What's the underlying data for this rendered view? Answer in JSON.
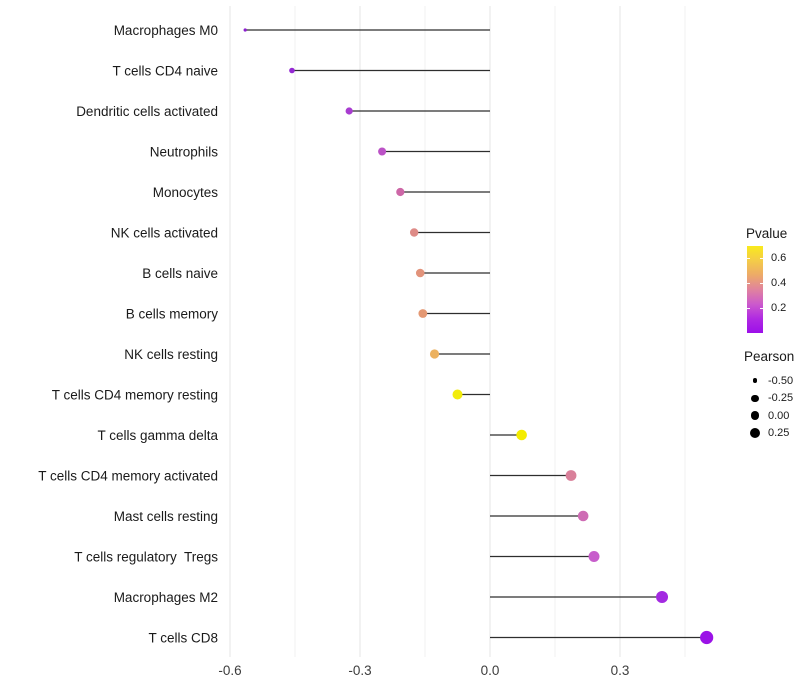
{
  "figure": {
    "background": "#ffffff"
  },
  "chart_data": {
    "type": "lollipop",
    "orientation": "horizontal",
    "title": "",
    "xlabel": "",
    "ylabel": "",
    "baseline": 0.0,
    "x_axis": {
      "ticks": [
        -0.6,
        -0.3,
        0.0,
        0.3
      ],
      "tick_labels": [
        "-0.6",
        "-0.3",
        "0.0",
        "0.3"
      ],
      "minor_ticks": [
        -0.45,
        -0.15,
        0.15,
        0.45
      ],
      "range": [
        -0.62,
        0.56
      ]
    },
    "grid": "on",
    "rows": [
      {
        "label": "Macrophages M0",
        "pearson": -0.565,
        "pvalue_approx": 0.03,
        "color": "#8d1fd0",
        "dot_radius": 1.6
      },
      {
        "label": "T cells CD4 naive",
        "pearson": -0.457,
        "pvalue_approx": 0.05,
        "color": "#9428d3",
        "dot_radius": 2.8
      },
      {
        "label": "Dendritic cells activated",
        "pearson": -0.325,
        "pvalue_approx": 0.09,
        "color": "#a83cd0",
        "dot_radius": 3.6
      },
      {
        "label": "Neutrophils",
        "pearson": -0.249,
        "pvalue_approx": 0.14,
        "color": "#bb52c6",
        "dot_radius": 4.0
      },
      {
        "label": "Monocytes",
        "pearson": -0.207,
        "pvalue_approx": 0.24,
        "color": "#cd67a7",
        "dot_radius": 4.1
      },
      {
        "label": "NK cells activated",
        "pearson": -0.175,
        "pvalue_approx": 0.34,
        "color": "#de8b87",
        "dot_radius": 4.2
      },
      {
        "label": "B cells naive",
        "pearson": -0.161,
        "pvalue_approx": 0.37,
        "color": "#e2937b",
        "dot_radius": 4.3
      },
      {
        "label": "B cells memory",
        "pearson": -0.155,
        "pvalue_approx": 0.38,
        "color": "#e49873",
        "dot_radius": 4.4
      },
      {
        "label": "NK cells resting",
        "pearson": -0.128,
        "pvalue_approx": 0.46,
        "color": "#ecb15f",
        "dot_radius": 4.6
      },
      {
        "label": "T cells CD4 memory resting",
        "pearson": -0.075,
        "pvalue_approx": 0.63,
        "color": "#f2ec0c",
        "dot_radius": 5.0
      },
      {
        "label": "T cells gamma delta",
        "pearson": 0.073,
        "pvalue_approx": 0.65,
        "color": "#f4ec00",
        "dot_radius": 5.3
      },
      {
        "label": "T cells CD4 memory activated",
        "pearson": 0.187,
        "pvalue_approx": 0.33,
        "color": "#d9809a",
        "dot_radius": 5.4
      },
      {
        "label": "Mast cells resting",
        "pearson": 0.215,
        "pvalue_approx": 0.27,
        "color": "#ce6cb4",
        "dot_radius": 5.3
      },
      {
        "label": "T cells regulatory  Tregs",
        "pearson": 0.24,
        "pvalue_approx": 0.21,
        "color": "#c75ecb",
        "dot_radius": 5.5
      },
      {
        "label": "Macrophages M2",
        "pearson": 0.397,
        "pvalue_approx": 0.08,
        "color": "#a32ae1",
        "dot_radius": 6.0
      },
      {
        "label": "T cells CD8",
        "pearson": 0.5,
        "pvalue_approx": 0.05,
        "color": "#9b12e7",
        "dot_radius": 6.6
      }
    ],
    "stem_color": "#2e2e2e",
    "grid_major_color": "#e4e4e4",
    "grid_minor_color": "#f1f1f1"
  },
  "legend": {
    "pvalue": {
      "title": "Pvalue",
      "bar_top_value": 0.7,
      "bar_bottom_value": 0.0,
      "ticks": [
        {
          "label": "0.6",
          "value": 0.6
        },
        {
          "label": "0.4",
          "value": 0.4
        },
        {
          "label": "0.2",
          "value": 0.2
        }
      ],
      "gradient_top_to_bottom": [
        "#f9ea1d",
        "#f4cc48",
        "#edaa68",
        "#e0839e",
        "#cc5acc",
        "#b02ae2",
        "#9c0fe9"
      ]
    },
    "pearson": {
      "title": "Pearson",
      "items": [
        {
          "label": "-0.50",
          "radius": 2.3
        },
        {
          "label": "-0.25",
          "radius": 3.6
        },
        {
          "label": "0.00",
          "radius": 4.4
        },
        {
          "label": "0.25",
          "radius": 5.2
        }
      ]
    }
  }
}
